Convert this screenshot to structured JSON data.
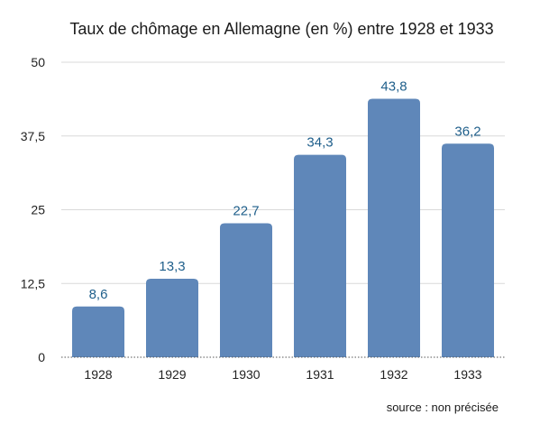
{
  "chart_data": {
    "type": "bar",
    "title": "Taux de chômage en Allemagne (en %) entre 1928 et 1933",
    "categories": [
      "1928",
      "1929",
      "1930",
      "1931",
      "1932",
      "1933"
    ],
    "values": [
      8.6,
      13.3,
      22.7,
      34.3,
      43.8,
      36.2
    ],
    "value_labels": [
      "8,6",
      "13,3",
      "22,7",
      "34,3",
      "43,8",
      "36,2"
    ],
    "ylim": [
      0,
      50
    ],
    "yticks": [
      0,
      12.5,
      25,
      37.5,
      50
    ],
    "ytick_labels": [
      "0",
      "12,5",
      "25",
      "37,5",
      "50"
    ],
    "xlabel": "",
    "ylabel": "",
    "grid": true,
    "legend": "none",
    "source": "source : non précisée",
    "colors": {
      "bar": "#5f87b9",
      "data_label": "#1f5f8b",
      "grid": "#d9d9d9",
      "baseline": "#555555",
      "text": "#222222"
    }
  }
}
